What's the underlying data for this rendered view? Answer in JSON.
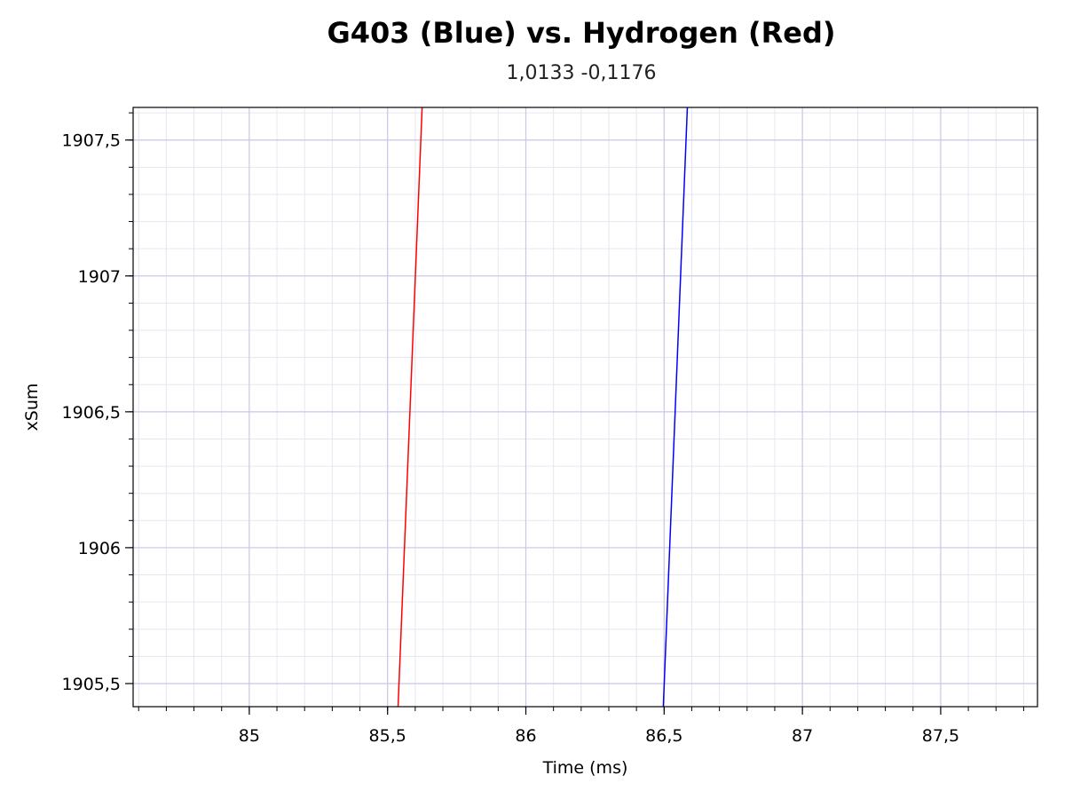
{
  "chart_data": {
    "type": "line",
    "title": "G403 (Blue) vs. Hydrogen (Red)",
    "subtitle": "1,0133 -0,1176",
    "xlabel": "Time (ms)",
    "ylabel": "xSum",
    "xlim": [
      84.58,
      87.85
    ],
    "ylim": [
      1905.415,
      1907.62
    ],
    "x_ticks": [
      85,
      85.5,
      86,
      86.5,
      87,
      87.5
    ],
    "x_tick_labels": [
      "85",
      "85,5",
      "86",
      "86,5",
      "87",
      "87,5"
    ],
    "y_ticks": [
      1905.5,
      1906,
      1906.5,
      1907,
      1907.5
    ],
    "y_tick_labels": [
      "1905,5",
      "1906",
      "1906,5",
      "1907",
      "1907,5"
    ],
    "x_minor_step": 0.1,
    "y_minor_step": 0.1,
    "grid": true,
    "series": [
      {
        "name": "Hydrogen",
        "color": "#ff0000",
        "x": [
          85.538,
          85.625
        ],
        "y": [
          1905.415,
          1907.62
        ]
      },
      {
        "name": "G403",
        "color": "#0000ff",
        "x": [
          86.497,
          86.584
        ],
        "y": [
          1905.415,
          1907.62
        ]
      }
    ],
    "colors": {
      "grid_major": "#c8c8e6",
      "grid_minor": "#e6e6f2",
      "frame": "#000000"
    }
  }
}
